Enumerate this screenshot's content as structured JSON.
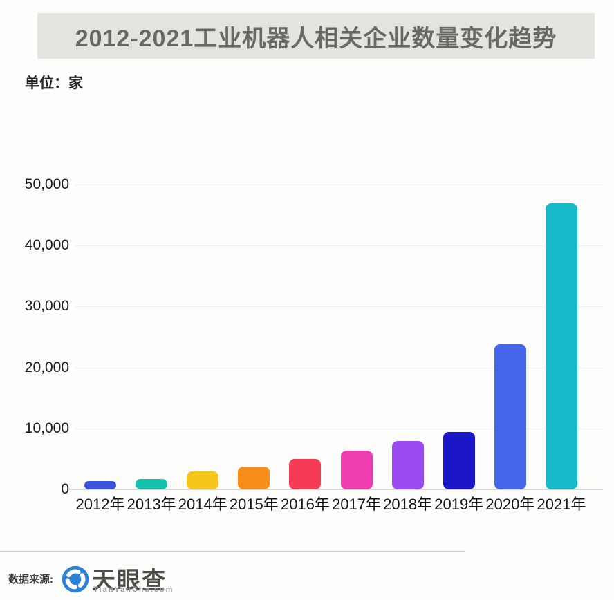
{
  "title": "2012-2021工业机器人相关企业数量变化趋势",
  "unit_label": "单位：家",
  "footer": {
    "source_label": "数据来源:",
    "logo_text": "天眼查",
    "logo_subtext": "TianYanCha.com",
    "logo_color": "#2b81d6"
  },
  "chart_data": {
    "type": "bar",
    "title": "2012-2021工业机器人相关企业数量变化趋势",
    "ylabel": "家",
    "xlabel": "",
    "ylim": [
      0,
      50000
    ],
    "grid": "horizontal-faint",
    "legend": "none",
    "categories": [
      "2012年",
      "2013年",
      "2014年",
      "2015年",
      "2016年",
      "2017年",
      "2018年",
      "2019年",
      "2020年",
      "2021年"
    ],
    "values": [
      1400,
      1700,
      3000,
      3700,
      5000,
      6300,
      7900,
      9400,
      23800,
      46900
    ],
    "bar_colors": [
      "#3a55da",
      "#14bfab",
      "#f6c51a",
      "#f88d1a",
      "#f43a55",
      "#ef3eae",
      "#9b4bf2",
      "#1b17c8",
      "#4565e8",
      "#15b9c7"
    ],
    "yticks": [
      {
        "value": 50000,
        "label": "50,000"
      },
      {
        "value": 40000,
        "label": "40,000"
      },
      {
        "value": 30000,
        "label": "30,000"
      },
      {
        "value": 20000,
        "label": "20,000"
      },
      {
        "value": 10000,
        "label": "10,000"
      },
      {
        "value": 0,
        "label": "0"
      }
    ],
    "source": "天眼查 TianYanCha.com"
  }
}
